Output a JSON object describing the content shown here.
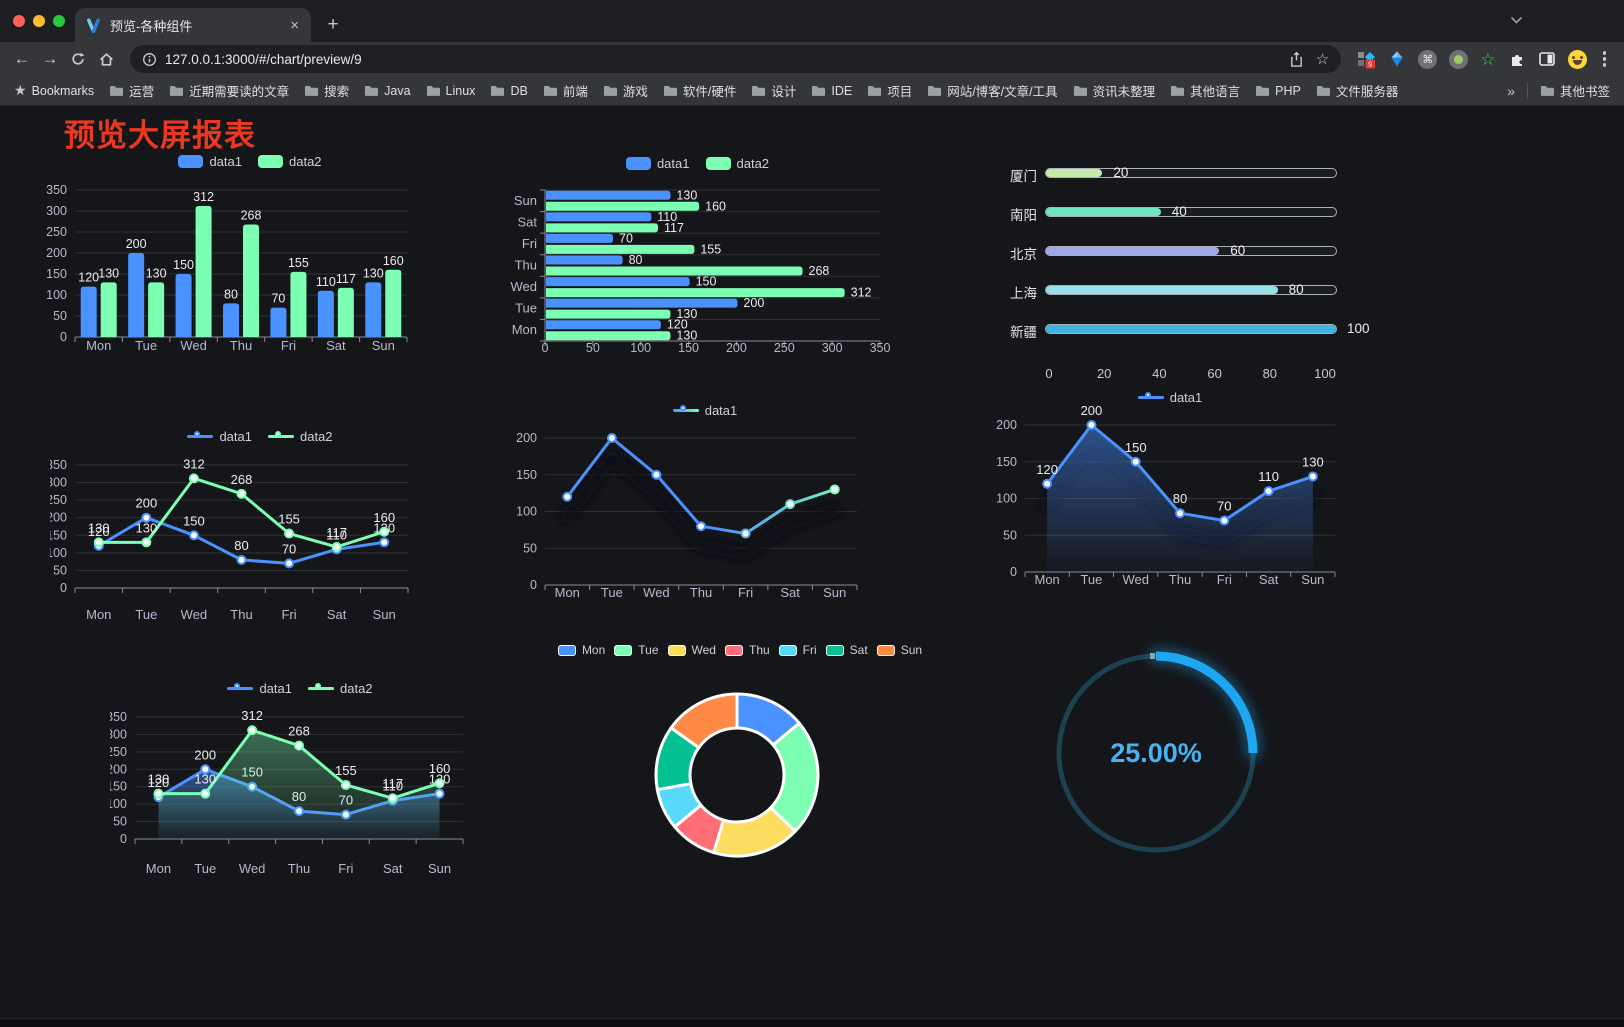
{
  "browser": {
    "tab_title": "预览-各种组件",
    "url": "127.0.0.1:3000/#/chart/preview/9",
    "bookmarks_label": "Bookmarks",
    "bookmarks": [
      "运营",
      "近期需要读的文章",
      "搜索",
      "Java",
      "Linux",
      "DB",
      "前端",
      "游戏",
      "软件/硬件",
      "设计",
      "IDE",
      "项目",
      "网站/博客/文章/工具",
      "资讯未整理",
      "其他语言",
      "PHP",
      "文件服务器"
    ],
    "overflow_symbol": "»",
    "other_bookmarks": "其他书签",
    "extension_badge": "9"
  },
  "page": {
    "title": "预览大屏报表",
    "title_color": "#e93a21"
  },
  "chart_data": [
    {
      "id": "grouped-bar",
      "type": "bar",
      "categories": [
        "Mon",
        "Tue",
        "Wed",
        "Thu",
        "Fri",
        "Sat",
        "Sun"
      ],
      "series": [
        {
          "name": "data1",
          "color": "#4992ff",
          "values": [
            120,
            200,
            150,
            80,
            70,
            110,
            130
          ]
        },
        {
          "name": "data2",
          "color": "#7cffb2",
          "values": [
            130,
            130,
            312,
            268,
            155,
            117,
            160
          ]
        }
      ],
      "ylim": [
        0,
        350
      ],
      "ytick": 50,
      "value_labels": true,
      "legend_position": "top",
      "grid": true
    },
    {
      "id": "horizontal-bar",
      "type": "barH",
      "categories": [
        "Mon",
        "Tue",
        "Wed",
        "Thu",
        "Fri",
        "Sat",
        "Sun"
      ],
      "series": [
        {
          "name": "data1",
          "color": "#4992ff",
          "values": [
            120,
            200,
            150,
            80,
            70,
            110,
            130
          ]
        },
        {
          "name": "data2",
          "color": "#7cffb2",
          "values": [
            130,
            130,
            312,
            268,
            155,
            117,
            160
          ]
        }
      ],
      "xlim": [
        0,
        350
      ],
      "xtick": 50,
      "value_labels": true,
      "legend_position": "top",
      "grid": true
    },
    {
      "id": "progress-bars",
      "type": "progress",
      "max": 100,
      "items": [
        {
          "label": "厦门",
          "value": 20,
          "color": "#c4ebad"
        },
        {
          "label": "南阳",
          "value": 40,
          "color": "#6be6c1"
        },
        {
          "label": "北京",
          "value": 60,
          "color": "#a0a7e6"
        },
        {
          "label": "上海",
          "value": 80,
          "color": "#96dee8"
        },
        {
          "label": "新疆",
          "value": 100,
          "color": "#3fb1e3"
        }
      ],
      "xticks": [
        0,
        20,
        40,
        60,
        80,
        100
      ]
    },
    {
      "id": "two-line",
      "type": "line",
      "categories": [
        "Mon",
        "Tue",
        "Wed",
        "Thu",
        "Fri",
        "Sat",
        "Sun"
      ],
      "series": [
        {
          "name": "data1",
          "color": "#4992ff",
          "values": [
            120,
            200,
            150,
            80,
            70,
            110,
            130
          ]
        },
        {
          "name": "data2",
          "color": "#7cffb2",
          "values": [
            130,
            130,
            312,
            268,
            155,
            117,
            160
          ]
        }
      ],
      "ylim": [
        0,
        350
      ],
      "ytick": 50,
      "value_labels": true,
      "legend_position": "top",
      "grid": true
    },
    {
      "id": "gradient-line",
      "type": "line",
      "categories": [
        "Mon",
        "Tue",
        "Wed",
        "Thu",
        "Fri",
        "Sat",
        "Sun"
      ],
      "series": [
        {
          "name": "data1",
          "color": "#4992ff",
          "color2": "#7cffb2",
          "values": [
            120,
            200,
            150,
            80,
            70,
            110,
            130
          ]
        }
      ],
      "ylim": [
        0,
        200
      ],
      "ytick": 50,
      "value_labels": false,
      "shadow": true,
      "legend_position": "top",
      "grid": true
    },
    {
      "id": "area-line",
      "type": "line",
      "categories": [
        "Mon",
        "Tue",
        "Wed",
        "Thu",
        "Fri",
        "Sat",
        "Sun"
      ],
      "series": [
        {
          "name": "data1",
          "color": "#4992ff",
          "values": [
            120,
            200,
            150,
            80,
            70,
            110,
            130
          ],
          "area": true
        }
      ],
      "ylim": [
        0,
        200
      ],
      "ytick": 50,
      "value_labels": true,
      "shadow": true,
      "legend_position": "top",
      "grid": true
    },
    {
      "id": "two-area-line",
      "type": "line",
      "categories": [
        "Mon",
        "Tue",
        "Wed",
        "Thu",
        "Fri",
        "Sat",
        "Sun"
      ],
      "series": [
        {
          "name": "data1",
          "color": "#4992ff",
          "values": [
            120,
            200,
            150,
            80,
            70,
            110,
            130
          ],
          "area": true
        },
        {
          "name": "data2",
          "color": "#7cffb2",
          "values": [
            130,
            130,
            312,
            268,
            155,
            117,
            160
          ],
          "area": true
        }
      ],
      "ylim": [
        0,
        350
      ],
      "ytick": 50,
      "value_labels": true,
      "legend_position": "top",
      "grid": true
    },
    {
      "id": "donut",
      "type": "pie",
      "legend_position": "top",
      "items": [
        {
          "name": "Mon",
          "value": 120,
          "color": "#4992ff"
        },
        {
          "name": "Tue",
          "value": 200,
          "color": "#7cffb2"
        },
        {
          "name": "Wed",
          "value": 150,
          "color": "#fddd60"
        },
        {
          "name": "Thu",
          "value": 80,
          "color": "#ff6e76"
        },
        {
          "name": "Fri",
          "value": 70,
          "color": "#58d9f9"
        },
        {
          "name": "Sat",
          "value": 110,
          "color": "#05c091"
        },
        {
          "name": "Sun",
          "value": 130,
          "color": "#ff8a45"
        }
      ]
    },
    {
      "id": "gauge",
      "type": "gauge",
      "percent": 25,
      "label": "25.00%",
      "color": "#1ea7f0",
      "text_color": "#46b4f4",
      "track_color": "#1c4150"
    }
  ]
}
